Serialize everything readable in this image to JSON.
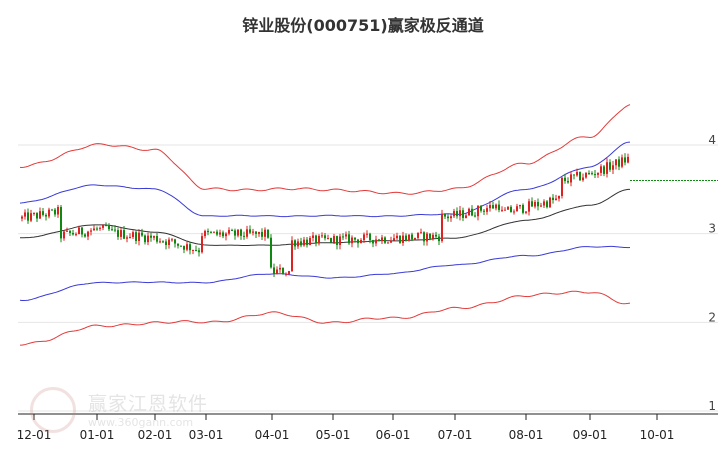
{
  "chart_data": {
    "type": "candlestick",
    "title": "锌业股份(000751)赢家极反通道",
    "xlabel": "",
    "ylabel": "",
    "ylim": [
      1,
      4.8
    ],
    "yticks": [
      1,
      2,
      3,
      4
    ],
    "x_tick_labels": [
      "12-01",
      "01-01",
      "02-01",
      "03-01",
      "04-01",
      "05-01",
      "06-01",
      "07-01",
      "08-01",
      "09-01",
      "10-01"
    ],
    "grid": true,
    "legend": "none",
    "last_close": 3.6,
    "colors": {
      "up": "#dd2222",
      "down": "#118811",
      "outer_band": "#e23b3b",
      "inner_band": "#3b3bd6",
      "mid_line": "#333333",
      "reference": "#118811",
      "grid": "#e6e6e6"
    },
    "series": [
      {
        "name": "outer_upper",
        "x": [
          "12-01",
          "01-01",
          "02-01",
          "03-01",
          "04-01",
          "05-01",
          "06-01",
          "07-01",
          "08-01",
          "09-01",
          "09-22"
        ],
        "values": [
          3.75,
          4.0,
          3.95,
          3.5,
          3.5,
          3.5,
          3.45,
          3.5,
          3.8,
          4.1,
          4.45
        ]
      },
      {
        "name": "inner_upper",
        "x": [
          "12-01",
          "01-01",
          "02-01",
          "03-01",
          "04-01",
          "05-01",
          "06-01",
          "07-01",
          "08-01",
          "09-01",
          "09-22"
        ],
        "values": [
          3.35,
          3.55,
          3.5,
          3.2,
          3.2,
          3.2,
          3.2,
          3.22,
          3.5,
          3.75,
          4.03
        ]
      },
      {
        "name": "mid",
        "x": [
          "12-01",
          "01-01",
          "02-01",
          "03-01",
          "04-01",
          "05-01",
          "06-01",
          "07-01",
          "08-01",
          "09-01",
          "09-22"
        ],
        "values": [
          2.95,
          3.1,
          3.02,
          2.87,
          2.87,
          2.9,
          2.92,
          2.95,
          3.15,
          3.32,
          3.5
        ]
      },
      {
        "name": "inner_lower",
        "x": [
          "12-01",
          "01-01",
          "02-01",
          "03-01",
          "04-01",
          "05-01",
          "06-01",
          "07-01",
          "08-01",
          "09-01",
          "09-22"
        ],
        "values": [
          2.25,
          2.45,
          2.45,
          2.45,
          2.55,
          2.5,
          2.55,
          2.65,
          2.75,
          2.85,
          2.85
        ]
      },
      {
        "name": "outer_lower",
        "x": [
          "12-01",
          "01-01",
          "02-01",
          "03-01",
          "04-01",
          "05-01",
          "06-01",
          "07-01",
          "08-01",
          "09-01",
          "09-22"
        ],
        "values": [
          1.75,
          1.95,
          2.0,
          2.0,
          2.1,
          2.0,
          2.05,
          2.15,
          2.3,
          2.35,
          2.2
        ]
      }
    ]
  },
  "watermark": {
    "text": "赢家江恩软件",
    "url": "www.360gann.com"
  }
}
